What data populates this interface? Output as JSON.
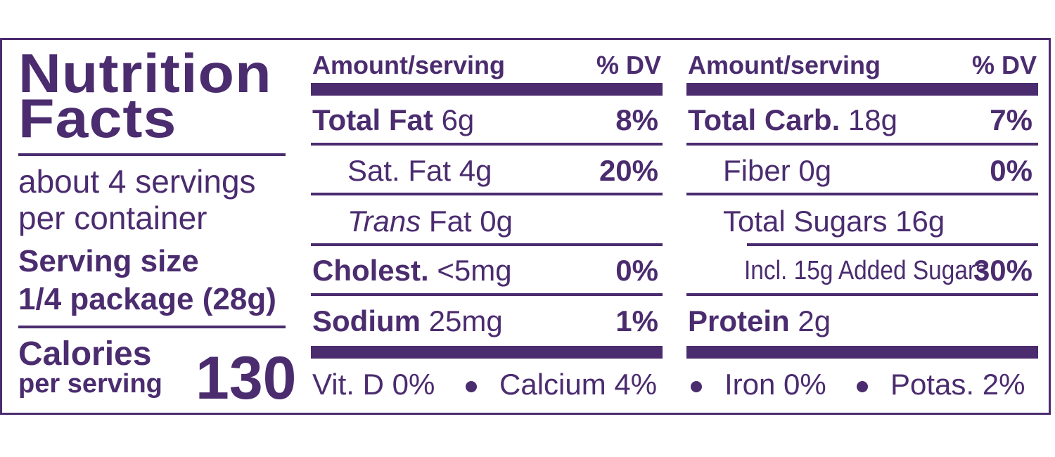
{
  "left": {
    "title_line1": "Nutrition",
    "title_line2": "Facts",
    "servings_line1": "about 4 servings",
    "servings_line2": "per container",
    "serving_size_label": "Serving size",
    "serving_size_value": "1/4 package (28g)",
    "calories_label": "Calories",
    "calories_sub": "per serving",
    "calories_value": "130"
  },
  "middle": {
    "header_amount": "Amount/serving",
    "header_dv": "% DV",
    "total_fat_label": "Total Fat",
    "total_fat_amount": "6g",
    "total_fat_dv": "8%",
    "sat_fat": "Sat. Fat 4g",
    "sat_fat_dv": "20%",
    "trans_fat_italic": "Trans",
    "trans_fat_rest": "Fat 0g",
    "cholest_label": "Cholest.",
    "cholest_amount": "<5mg",
    "cholest_dv": "0%",
    "sodium_label": "Sodium",
    "sodium_amount": "25mg",
    "sodium_dv": "1%"
  },
  "right": {
    "header_amount": "Amount/serving",
    "header_dv": "% DV",
    "carb_label": "Total Carb.",
    "carb_amount": "18g",
    "carb_dv": "7%",
    "fiber": "Fiber 0g",
    "fiber_dv": "0%",
    "sugars": "Total Sugars 16g",
    "added_sugars": "Incl. 15g Added Sugars",
    "added_sugars_dv": "30%",
    "protein_label": "Protein",
    "protein_amount": "2g"
  },
  "vitamins": {
    "vit_d": "Vit. D 0%",
    "calcium": "Calcium 4%",
    "iron": "Iron 0%",
    "potas": "Potas. 2%"
  },
  "colors": {
    "ink": "#4b2c6f",
    "background": "#ffffff"
  }
}
